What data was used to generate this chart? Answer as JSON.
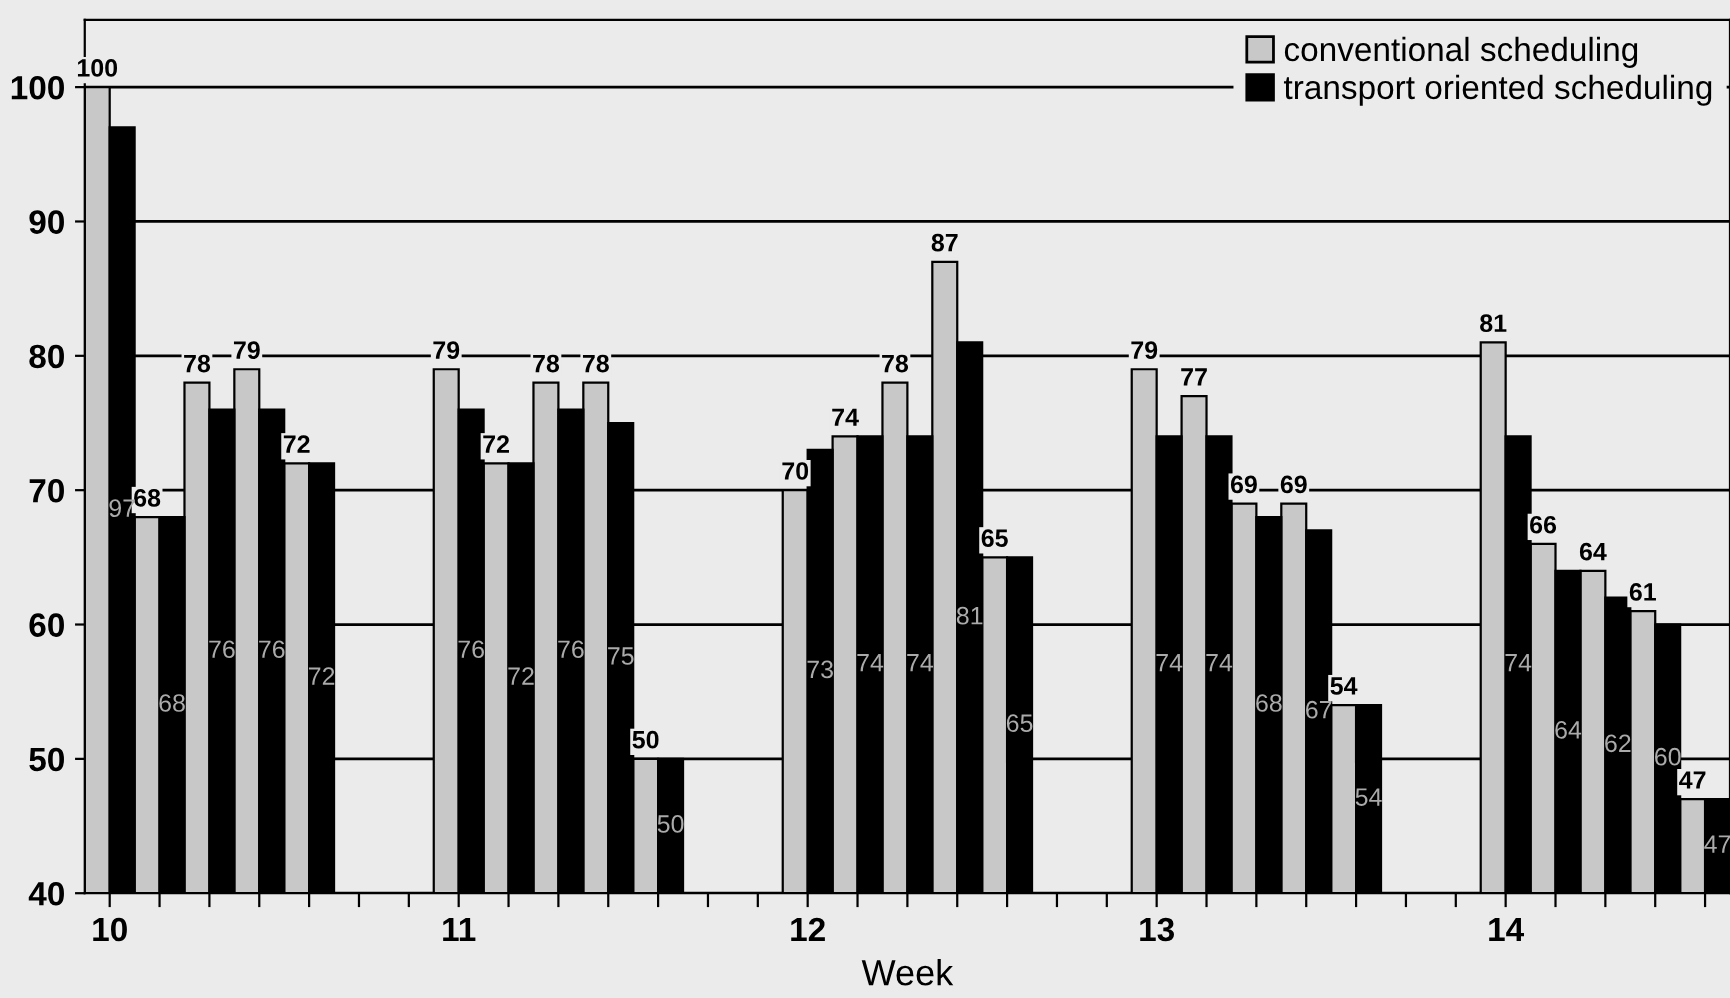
{
  "chart_data": {
    "type": "bar",
    "xlabel": "Week",
    "categories": [
      "10",
      null,
      null,
      null,
      null,
      null,
      null,
      "11",
      null,
      null,
      null,
      null,
      null,
      null,
      "12",
      null,
      null,
      null,
      null,
      null,
      null,
      "13",
      null,
      null,
      null,
      null,
      null,
      null,
      "14",
      null,
      null,
      null,
      null
    ],
    "series": [
      {
        "name": "conventional scheduling",
        "color": "#c8c8c8",
        "values": [
          100,
          68,
          78,
          79,
          72,
          null,
          null,
          79,
          72,
          78,
          78,
          50,
          null,
          null,
          70,
          74,
          78,
          87,
          65,
          null,
          null,
          79,
          77,
          69,
          69,
          54,
          null,
          null,
          81,
          66,
          64,
          61,
          47
        ]
      },
      {
        "name": "transport oriented scheduling",
        "color": "#000000",
        "values": [
          97,
          68,
          76,
          76,
          72,
          null,
          null,
          76,
          72,
          76,
          75,
          50,
          null,
          null,
          73,
          74,
          74,
          81,
          65,
          null,
          null,
          74,
          74,
          68,
          67,
          54,
          null,
          null,
          74,
          64,
          62,
          60,
          47
        ]
      }
    ],
    "ylim": [
      40,
      105
    ],
    "yticks": [
      40,
      50,
      60,
      70,
      80,
      90,
      100
    ],
    "grid": "y",
    "legend": "top right",
    "data_labels": true
  }
}
